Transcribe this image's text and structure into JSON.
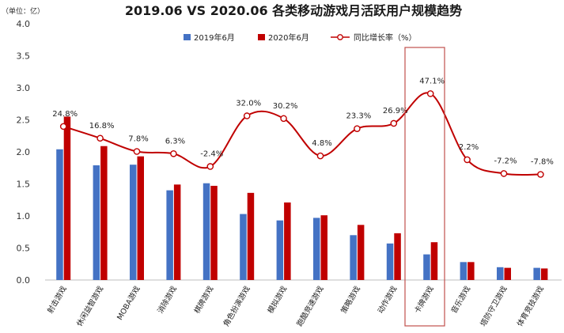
{
  "chart_data": {
    "type": "bar",
    "title": "2019.06 VS 2020.06 各类移动游戏月活跃用户规模趋势",
    "y_unit_label": "（单位：亿）",
    "ylim": [
      0,
      4.0
    ],
    "y_ticks": [
      "0.0",
      "0.5",
      "1.0",
      "1.5",
      "2.0",
      "2.5",
      "3.0",
      "3.5",
      "4.0"
    ],
    "categories": [
      "射击游戏",
      "休闲益智游戏",
      "MOBA游戏",
      "消除游戏",
      "棋牌游戏",
      "角色扮演游戏",
      "模拟游戏",
      "跑酷竞速游戏",
      "策略游戏",
      "动作游戏",
      "卡牌游戏",
      "音乐游戏",
      "塔防守卫游戏",
      "体育竞技游戏"
    ],
    "series": [
      {
        "name": "2019年6月",
        "type": "bar",
        "color": "#4472C4",
        "values": [
          2.04,
          1.79,
          1.8,
          1.4,
          1.51,
          1.03,
          0.93,
          0.97,
          0.7,
          0.57,
          0.4,
          0.28,
          0.2,
          0.19
        ]
      },
      {
        "name": "2020年6月",
        "type": "bar",
        "color": "#C00000",
        "values": [
          2.55,
          2.09,
          1.93,
          1.49,
          1.47,
          1.36,
          1.21,
          1.01,
          0.86,
          0.73,
          0.59,
          0.28,
          0.19,
          0.18
        ]
      },
      {
        "name": "同比增长率（%）",
        "type": "line",
        "color": "#C00000",
        "values": [
          24.8,
          16.8,
          7.8,
          6.3,
          -2.4,
          32.0,
          30.2,
          4.8,
          23.3,
          26.9,
          47.1,
          2.2,
          -7.2,
          -7.8
        ],
        "labels": [
          "24.8%",
          "16.8%",
          "7.8%",
          "6.3%",
          "-2.4%",
          "32.0%",
          "30.2%",
          "4.8%",
          "23.3%",
          "26.9%",
          "47.1%",
          "2.2%",
          "-7.2%",
          "-7.8%"
        ]
      }
    ],
    "highlight_category": "卡牌游戏",
    "legend_position": "top",
    "grid": false
  }
}
